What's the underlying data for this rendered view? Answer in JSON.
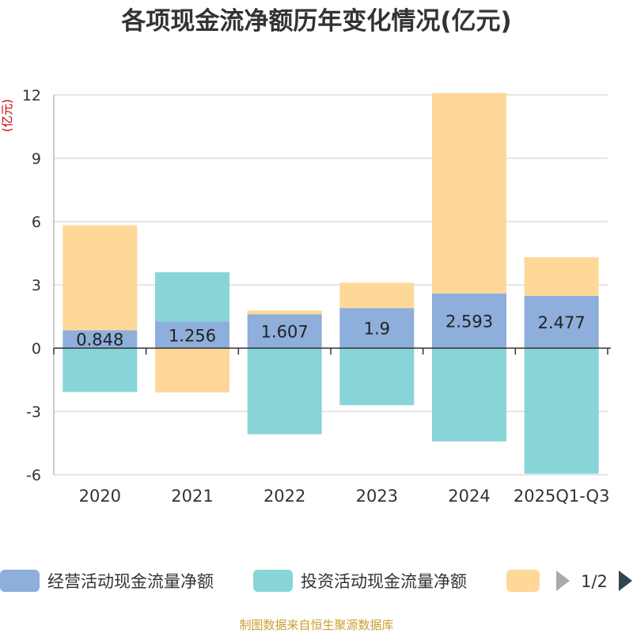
{
  "chart_data": {
    "type": "bar",
    "stacked": true,
    "title": "各项现金流净额历年变化情况(亿元)",
    "ylabel": "(亿元)",
    "categories": [
      "2020",
      "2021",
      "2022",
      "2023",
      "2024",
      "2025Q1-Q3"
    ],
    "ylim": [
      -6,
      12
    ],
    "yticks": [
      -6,
      -3,
      0,
      3,
      6,
      9,
      12
    ],
    "ytick_labels": [
      "-6",
      "-3",
      "0",
      "3",
      "6",
      "9",
      "12"
    ],
    "grid": true,
    "series": [
      {
        "name": "经营活动现金流量净额",
        "color": "#8eaedb",
        "values": [
          0.848,
          1.256,
          1.607,
          1.9,
          2.593,
          2.477
        ],
        "labels": [
          "0.848",
          "1.256",
          "1.607",
          "1.9",
          "2.593",
          "2.477"
        ]
      },
      {
        "name": "投资活动现金流量净额",
        "color": "#88d5d8",
        "values": [
          -2.08,
          2.34,
          -4.08,
          -2.7,
          -4.42,
          -5.95
        ]
      },
      {
        "name": "",
        "color": "#fdd899",
        "values": [
          4.98,
          -2.1,
          0.18,
          1.2,
          9.5,
          1.83
        ]
      }
    ]
  },
  "legend": {
    "items": [
      "经营活动现金流量净额",
      "投资活动现金流量净额",
      ""
    ],
    "page_indicator": "1/2"
  },
  "source": "制图数据来自恒生聚源数据库"
}
